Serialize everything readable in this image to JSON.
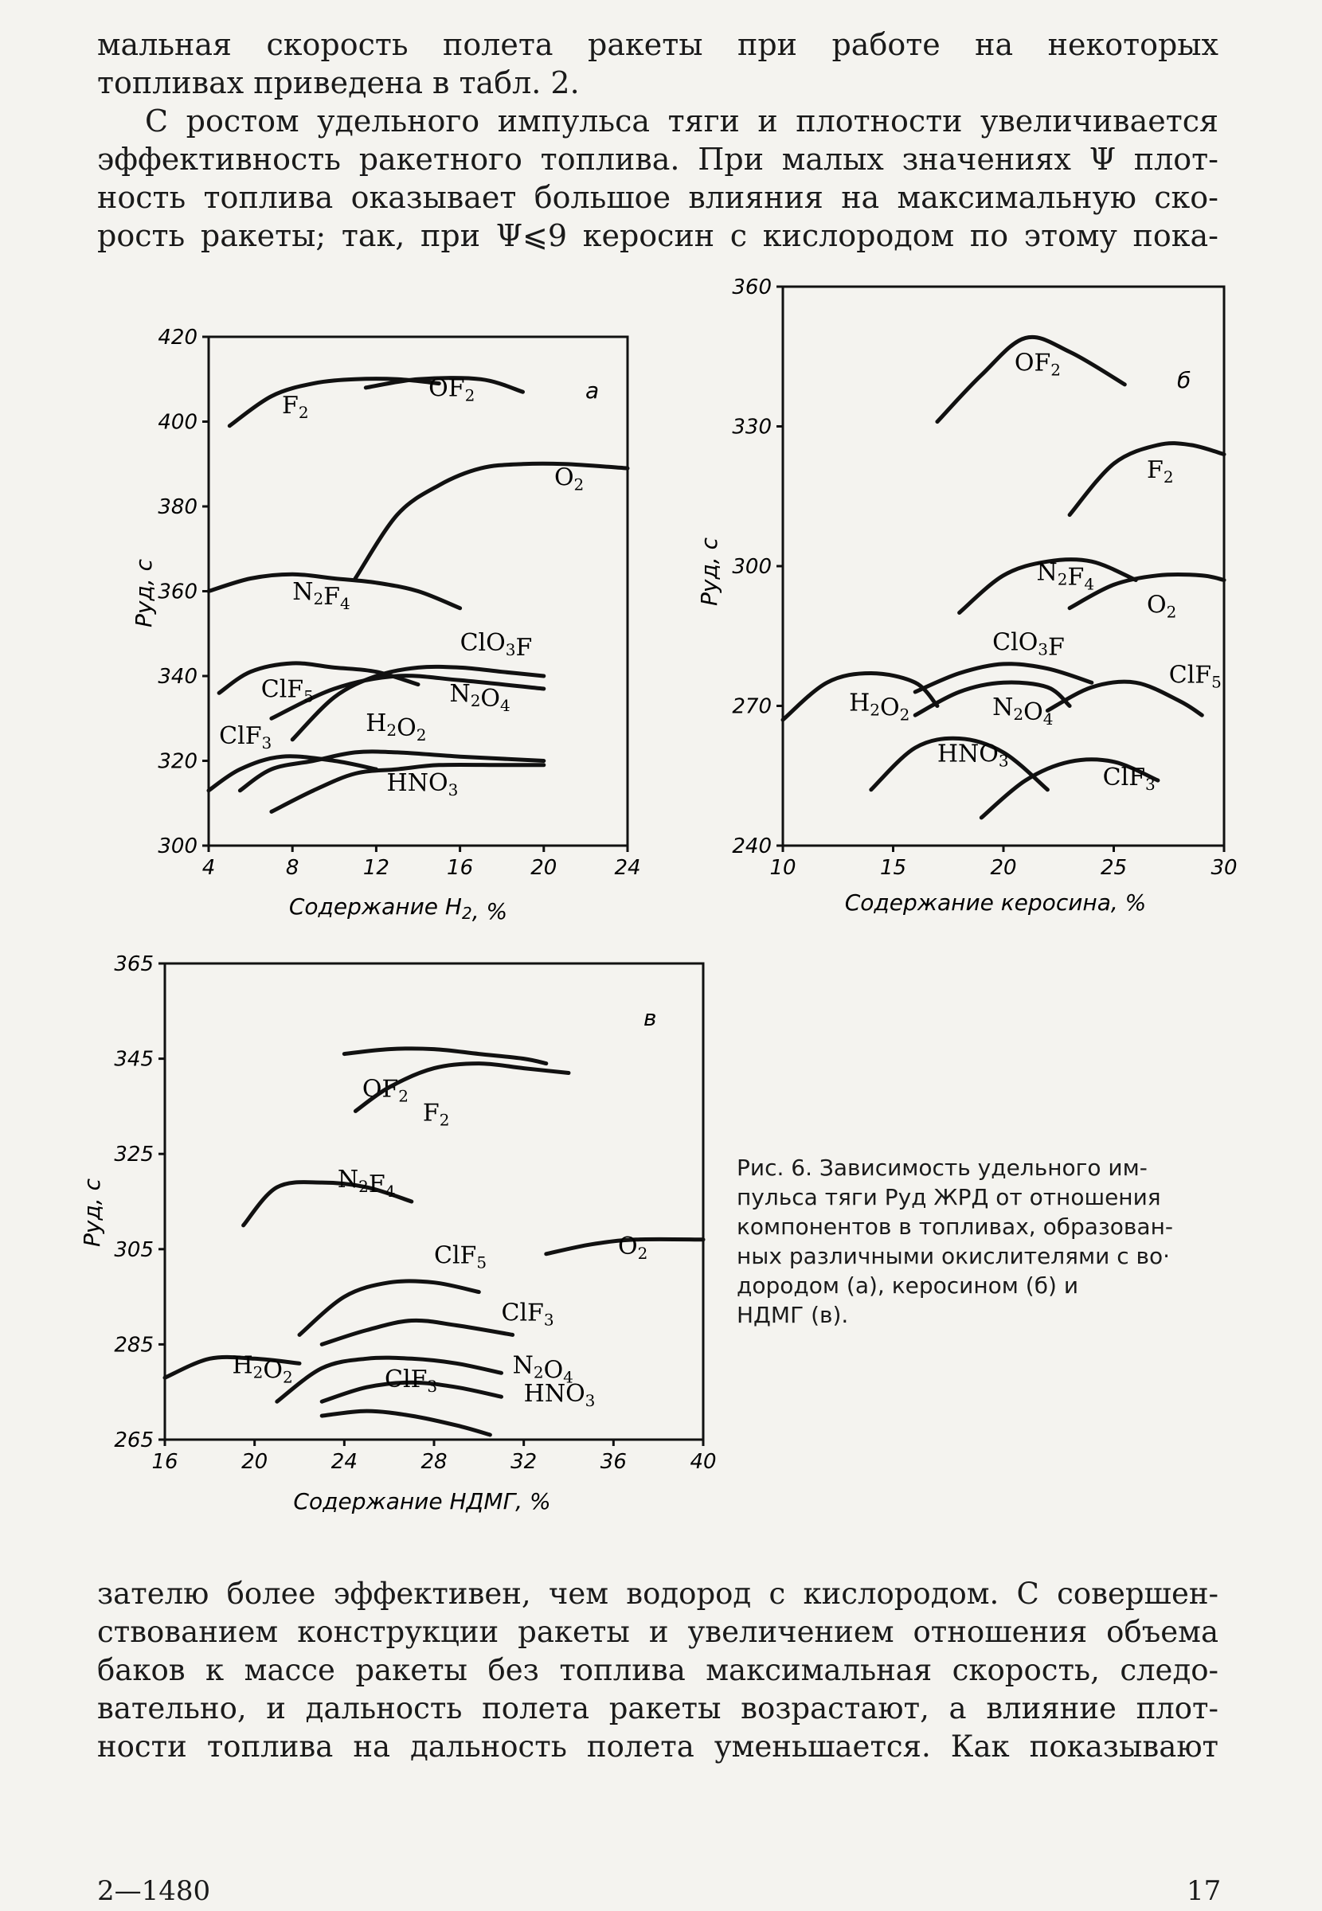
{
  "text_top": {
    "lines": [
      "мальная скорость полета ракеты при работе на некоторых",
      "топливах приведена в табл. 2.",
      "С ростом удельного импульса тяги и плотности увеличивается",
      "эффективность ракетного топлива. При малых значениях Ψ плот-",
      "ность топлива оказывает большое влияния на максимальную ско-",
      "рость ракеты; так, при Ψ⩽9 керосин с кислородом по этому пока-"
    ]
  },
  "text_bottom": {
    "lines": [
      "зателю более эффективен, чем водород с кислородом. С совершен-",
      "ствованием конструкции ракеты и увеличением отношения объема",
      "баков к массе ракеты без топлива максимальная скорость, следо-",
      "вательно, и дальность полета ракеты возрастают, а влияние плот-",
      "ности топлива на дальность полета уменьшается. Как показывают"
    ]
  },
  "caption": {
    "lines": [
      "Рис. 6. Зависимость удельного им-",
      "пульса тяги Pуд ЖРД от отношения",
      "компонентов в топливах, образован-",
      "ных различными окислителями с во·",
      "дородом (а), керосином (б) и",
      "НДМГ (в)."
    ]
  },
  "footer": {
    "left": "2—1480",
    "right": "17"
  },
  "chart_data": [
    {
      "type": "line",
      "panel_label": "а",
      "ylabel": "Pуд, с",
      "xlabel": "Содержание H₂, %",
      "xlim": [
        4,
        24
      ],
      "ylim": [
        300,
        420
      ],
      "x_ticks": [
        "4",
        "8",
        "12",
        "16",
        "20",
        "24"
      ],
      "y_ticks": [
        "300",
        "320",
        "340",
        "360",
        "380",
        "400",
        "420"
      ],
      "series": [
        {
          "name": "F₂",
          "x": [
            5,
            7,
            9,
            11,
            13,
            15
          ],
          "y": [
            399,
            406,
            409,
            410,
            410,
            409
          ]
        },
        {
          "name": "OF₂",
          "x": [
            11.5,
            14,
            17,
            19
          ],
          "y": [
            408,
            410,
            410,
            407
          ]
        },
        {
          "name": "O₂",
          "x": [
            11,
            13,
            15,
            17,
            19,
            21,
            24
          ],
          "y": [
            363,
            378,
            385,
            389,
            390,
            390,
            389
          ]
        },
        {
          "name": "N₂F₄",
          "x": [
            4,
            6,
            8,
            10,
            12,
            14,
            16
          ],
          "y": [
            360,
            363,
            364,
            363,
            362,
            360,
            356
          ]
        },
        {
          "name": "ClO₃F",
          "x": [
            8,
            10,
            12,
            14,
            16,
            18,
            20
          ],
          "y": [
            325,
            335,
            340,
            342,
            342,
            341,
            340
          ]
        },
        {
          "name": "N₂O₄",
          "x": [
            7,
            10,
            13,
            16,
            20
          ],
          "y": [
            330,
            337,
            340,
            339,
            337
          ]
        },
        {
          "name": "ClF₅",
          "x": [
            4.5,
            6,
            8,
            10,
            12,
            14
          ],
          "y": [
            336,
            341,
            343,
            342,
            341,
            338
          ]
        },
        {
          "name": "H₂O₂",
          "x": [
            5.5,
            7,
            9,
            11,
            13,
            16,
            20
          ],
          "y": [
            313,
            318,
            320,
            322,
            322,
            321,
            320
          ]
        },
        {
          "name": "ClF₃",
          "x": [
            4,
            5.5,
            7.5,
            10,
            12
          ],
          "y": [
            313,
            318,
            321,
            320,
            318
          ]
        },
        {
          "name": "HNO₃",
          "x": [
            7,
            9,
            11,
            13,
            15,
            18,
            20
          ],
          "y": [
            308,
            313,
            317,
            318,
            319,
            319,
            319
          ]
        }
      ]
    },
    {
      "type": "line",
      "panel_label": "б",
      "ylabel": "Pуд, с",
      "xlabel": "Содержание керосина, %",
      "xlim": [
        10,
        30
      ],
      "ylim": [
        240,
        360
      ],
      "x_ticks": [
        "10",
        "15",
        "20",
        "25",
        "30"
      ],
      "y_ticks": [
        "240",
        "270",
        "300",
        "330",
        "360"
      ],
      "series": [
        {
          "name": "OF₂",
          "x": [
            17,
            19,
            21,
            23,
            25.5
          ],
          "y": [
            331,
            341,
            349,
            346,
            339
          ]
        },
        {
          "name": "F₂",
          "x": [
            23,
            25,
            27,
            28.5,
            30
          ],
          "y": [
            311,
            322,
            326,
            326,
            324
          ]
        },
        {
          "name": "N₂F₄",
          "x": [
            18,
            20,
            22,
            24,
            26
          ],
          "y": [
            290,
            298,
            301,
            301,
            297
          ]
        },
        {
          "name": "O₂",
          "x": [
            23,
            25,
            27,
            29,
            30
          ],
          "y": [
            291,
            296,
            298,
            298,
            297
          ]
        },
        {
          "name": "ClO₃F",
          "x": [
            16,
            18,
            20,
            22,
            24
          ],
          "y": [
            273,
            277,
            279,
            278,
            275
          ]
        },
        {
          "name": "ClF₅",
          "x": [
            22,
            24,
            26,
            28,
            29
          ],
          "y": [
            269,
            274,
            275,
            271,
            268
          ]
        },
        {
          "name": "H₂O₂",
          "x": [
            10,
            12,
            14,
            16,
            17
          ],
          "y": [
            267,
            275,
            277,
            275,
            270
          ]
        },
        {
          "name": "N₂O₄",
          "x": [
            16,
            18,
            20,
            22,
            23
          ],
          "y": [
            268,
            273,
            275,
            274,
            270
          ]
        },
        {
          "name": "HNO₃",
          "x": [
            14,
            16,
            18,
            20,
            22
          ],
          "y": [
            252,
            261,
            263,
            260,
            252
          ]
        },
        {
          "name": "ClF₃",
          "x": [
            19,
            21,
            23,
            25,
            27
          ],
          "y": [
            246,
            254,
            258,
            258,
            254
          ]
        }
      ]
    },
    {
      "type": "line",
      "panel_label": "в",
      "ylabel": "Pуд, с",
      "xlabel": "Содержание НДМГ, %",
      "xlim": [
        16,
        40
      ],
      "ylim": [
        265,
        365
      ],
      "x_ticks": [
        "16",
        "20",
        "24",
        "28",
        "32",
        "36",
        "40"
      ],
      "y_ticks": [
        "265",
        "285",
        "305",
        "325",
        "345",
        "365"
      ],
      "series": [
        {
          "name": "OF₂",
          "x": [
            24,
            26,
            28,
            30,
            32,
            33
          ],
          "y": [
            346,
            347,
            347,
            346,
            345,
            344
          ]
        },
        {
          "name": "F₂",
          "x": [
            24.5,
            26,
            28,
            30,
            32,
            34
          ],
          "y": [
            334,
            339,
            343,
            344,
            343,
            342
          ]
        },
        {
          "name": "N₂F₄",
          "x": [
            19.5,
            21,
            23,
            25,
            27
          ],
          "y": [
            310,
            318,
            319,
            318,
            315
          ]
        },
        {
          "name": "O₂",
          "x": [
            33,
            35,
            37,
            40
          ],
          "y": [
            304,
            306,
            307,
            307
          ]
        },
        {
          "name": "ClF₅",
          "x": [
            22,
            24,
            26,
            28,
            30
          ],
          "y": [
            287,
            295,
            298,
            298,
            296
          ]
        },
        {
          "name": "ClF₃",
          "x": [
            23,
            25,
            27,
            29,
            31.5
          ],
          "y": [
            285,
            288,
            290,
            289,
            287
          ]
        },
        {
          "name": "H₂O₂",
          "x": [
            16,
            18,
            20,
            22
          ],
          "y": [
            278,
            282,
            282,
            281
          ]
        },
        {
          "name": "N₂O₄",
          "x": [
            21,
            23,
            25,
            27,
            29,
            31
          ],
          "y": [
            273,
            280,
            282,
            282,
            281,
            279
          ]
        },
        {
          "name": "HNO₃",
          "x": [
            23,
            25,
            27,
            29,
            31
          ],
          "y": [
            273,
            276,
            277,
            276,
            274
          ]
        },
        {
          "name": "ClF₃",
          "x": [
            23,
            25,
            27,
            29,
            30.5
          ],
          "y": [
            270,
            271,
            270,
            268,
            266
          ]
        }
      ]
    }
  ]
}
